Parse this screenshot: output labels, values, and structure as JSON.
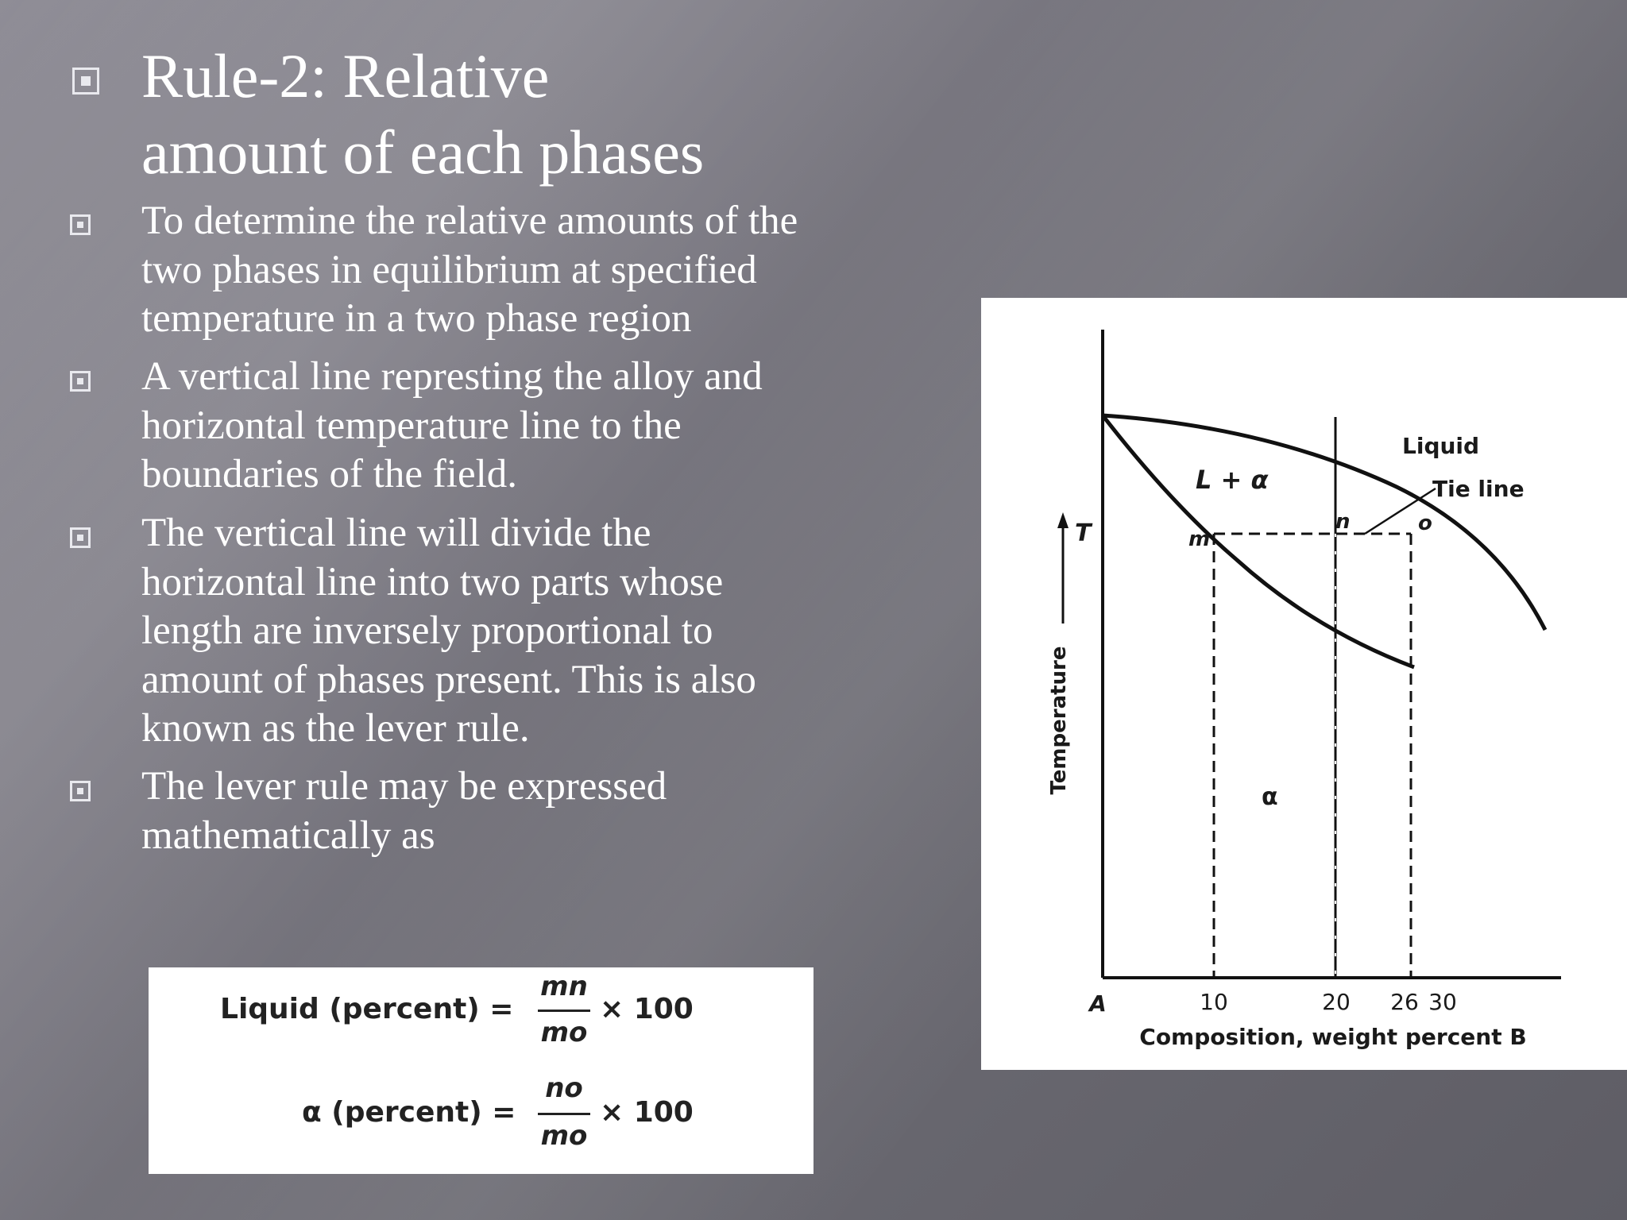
{
  "title": {
    "line1": "Rule-2: Relative",
    "line2": "amount of each phases"
  },
  "bullets": [
    {
      "lines": [
        "To determine the relative amounts of the",
        "two  phases in equilibrium at specified",
        "temperature in a two phase region"
      ]
    },
    {
      "lines": [
        "A vertical line represting the alloy and",
        "horizontal temperature line to the",
        "boundaries of the field."
      ]
    },
    {
      "lines": [
        "The vertical line will divide the",
        "horizontal line into two parts whose",
        "length are inversely proportional to",
        "amount of phases present. This is also",
        "known as the lever rule."
      ]
    },
    {
      "lines": [
        "The lever rule may be expressed",
        "mathematically as"
      ]
    }
  ],
  "formula": {
    "liquid_label": "Liquid (percent) =",
    "liquid_num": "mn",
    "liquid_den": "mo",
    "liquid_times": "× 100",
    "alpha_label": "α (percent) =",
    "alpha_num": "no",
    "alpha_den": "mo",
    "alpha_times": "× 100"
  },
  "diagram": {
    "y_label": "Temperature",
    "t_label": "T",
    "x_label": "Composition, weight percent B",
    "x_origin_label": "A",
    "x_ticks": [
      "10",
      "20",
      "26",
      "30"
    ],
    "region_liquid": "Liquid",
    "region_two_phase": "L + α",
    "region_alpha": "α",
    "tie_line_label": "Tie line",
    "point_m": "m",
    "point_n": "n",
    "point_o": "o"
  }
}
